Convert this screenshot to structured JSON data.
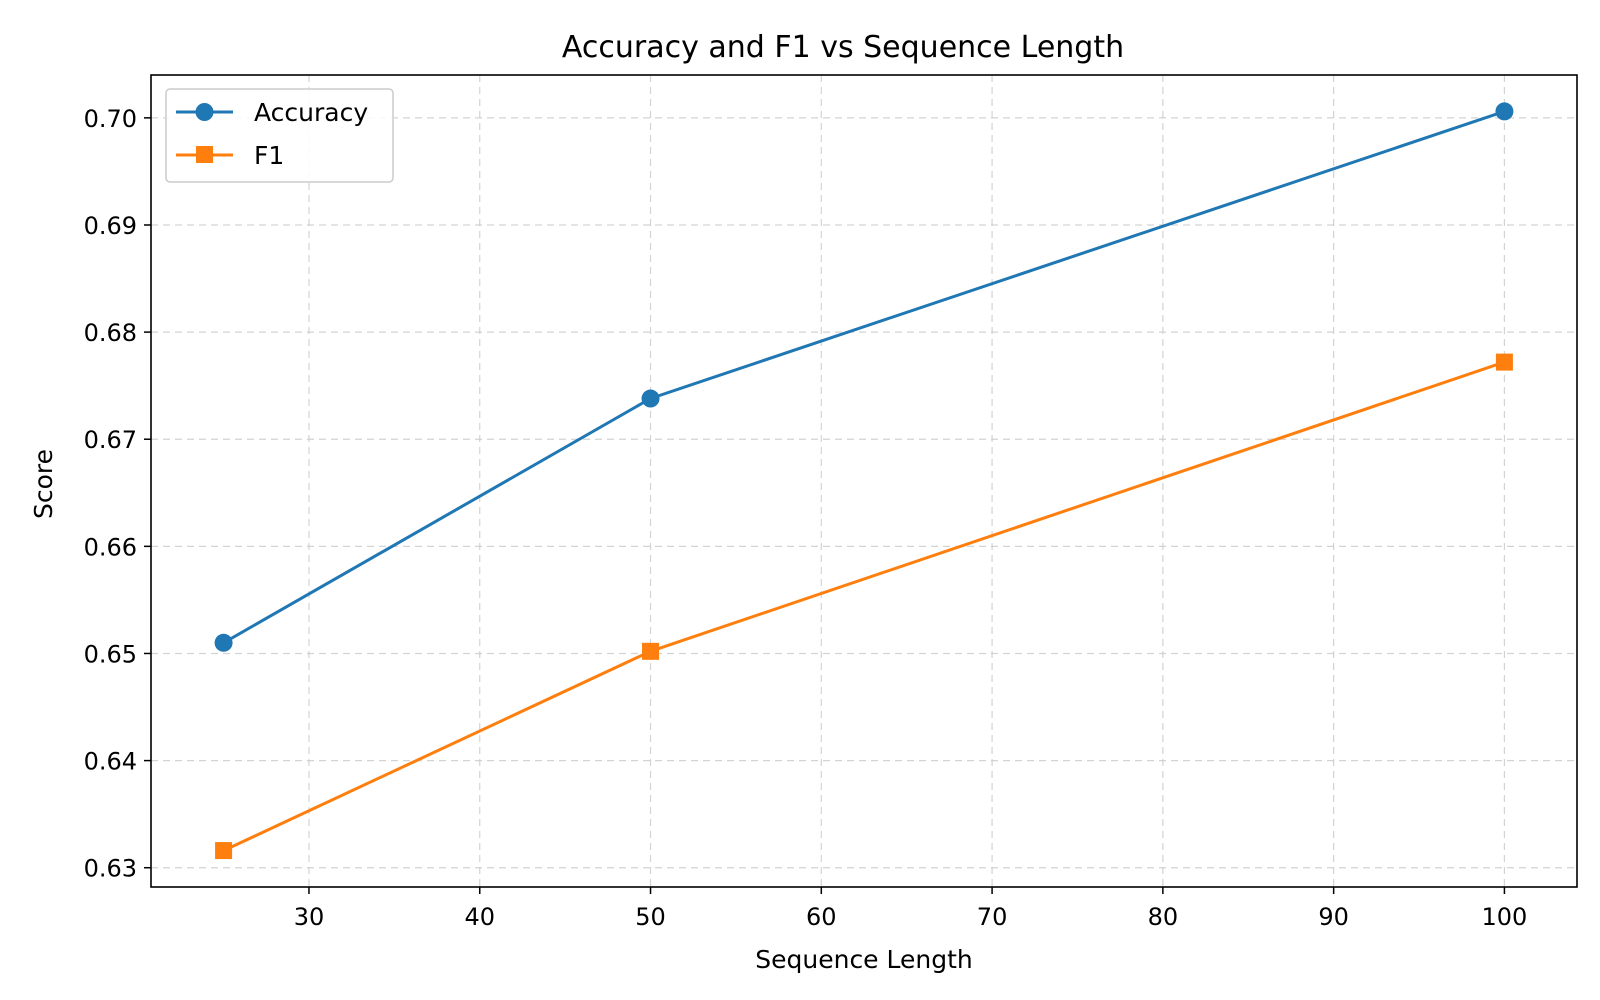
{
  "chart_data": {
    "type": "line",
    "title": "Accuracy and F1 vs Sequence Length",
    "xlabel": "Sequence Length",
    "ylabel": "Score",
    "x": [
      25,
      50,
      100
    ],
    "xlim": [
      20.75,
      104.25
    ],
    "ylim": [
      0.6282,
      0.704
    ],
    "xticks": [
      30,
      40,
      50,
      60,
      70,
      80,
      90,
      100
    ],
    "yticks": [
      0.63,
      0.64,
      0.65,
      0.66,
      0.67,
      0.68,
      0.69,
      0.7
    ],
    "xtick_labels": [
      "30",
      "40",
      "50",
      "60",
      "70",
      "80",
      "90",
      "100"
    ],
    "ytick_labels": [
      "0.63",
      "0.64",
      "0.65",
      "0.66",
      "0.67",
      "0.68",
      "0.69",
      "0.70"
    ],
    "grid": true,
    "legend_position": "top-left",
    "series": [
      {
        "name": "Accuracy",
        "values": [
          0.651,
          0.6738,
          0.7006
        ],
        "color": "#1f77b4",
        "marker": "circle"
      },
      {
        "name": "F1",
        "values": [
          0.6316,
          0.6502,
          0.6772
        ],
        "color": "#ff7f0e",
        "marker": "square"
      }
    ]
  }
}
